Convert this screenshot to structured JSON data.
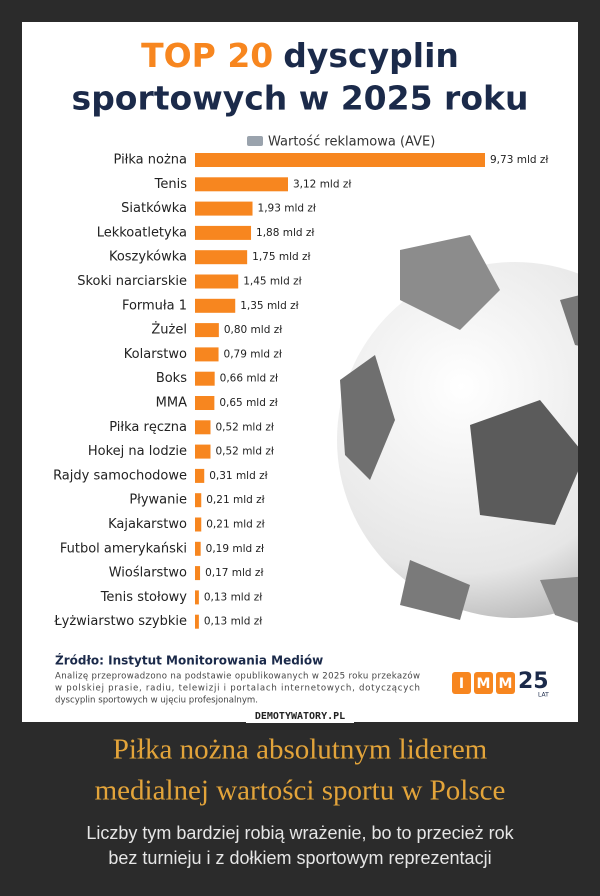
{
  "chart_data": {
    "type": "hbar",
    "title": {
      "accent": "TOP 20",
      "line1": "dyscyplin",
      "line2": "sportowych w 2025 roku"
    },
    "categories": [
      "Piłka nożna",
      "Tenis",
      "Siatkówka",
      "Lekkoatletyka",
      "Koszykówka",
      "Skoki narciarskie",
      "Formuła 1",
      "Żużel",
      "Kolarstwo",
      "Boks",
      "MMA",
      "Piłka ręczna",
      "Hokej na lodzie",
      "Rajdy samochodowe",
      "Pływanie",
      "Kajakarstwo",
      "Futbol amerykański",
      "Wioślarstwo",
      "Tenis stołowy",
      "Łyżwiarstwo szybkie"
    ],
    "series": [
      {
        "name": "Wartość reklamowa (AVE)",
        "color": "#f7861f",
        "values": [
          9.73,
          3.12,
          1.93,
          1.88,
          1.75,
          1.45,
          1.35,
          0.8,
          0.79,
          0.66,
          0.65,
          0.52,
          0.52,
          0.31,
          0.21,
          0.21,
          0.19,
          0.17,
          0.13,
          0.13
        ],
        "value_labels": [
          "9,73 mld zł",
          "3,12 mld zł",
          "1,93 mld zł",
          "1,88 mld zł",
          "1,75 mld zł",
          "1,45 mld zł",
          "1,35 mld zł",
          "0,80 mld zł",
          "0,79 mld zł",
          "0,66 mld zł",
          "0,65 mld zł",
          "0,52 mld zł",
          "0,52 mld zł",
          "0,31 mld zł",
          "0,21 mld zł",
          "0,21 mld zł",
          "0,19 mld zł",
          "0,17 mld zł",
          "0,13 mld zł",
          "0,13 mld zł"
        ]
      }
    ],
    "source": "Źródło: Instytut Monitorowania Mediów",
    "note": [
      "Analizę przeprowadzono na podstawie opublikowanych w 2025 roku przekazów",
      "w polskiej prasie, radiu, telewizji i portalach internetowych, dotyczących",
      "dyscyplin sportowych w ujęciu profesjonalnym."
    ]
  },
  "logo": {
    "letters": [
      "I",
      "M",
      "M"
    ],
    "number": "25",
    "suffix": "LAT"
  },
  "watermark": "DEMOTYWATORY.PL",
  "caption": {
    "title": [
      "Piłka nożna absolutnym liderem",
      "medialnej wartości sportu w Polsce"
    ],
    "text": [
      "Liczby tym bardziej robią wrażenie, bo to przecież rok",
      "bez turnieju i z dołkiem sportowym reprezentacji"
    ]
  }
}
